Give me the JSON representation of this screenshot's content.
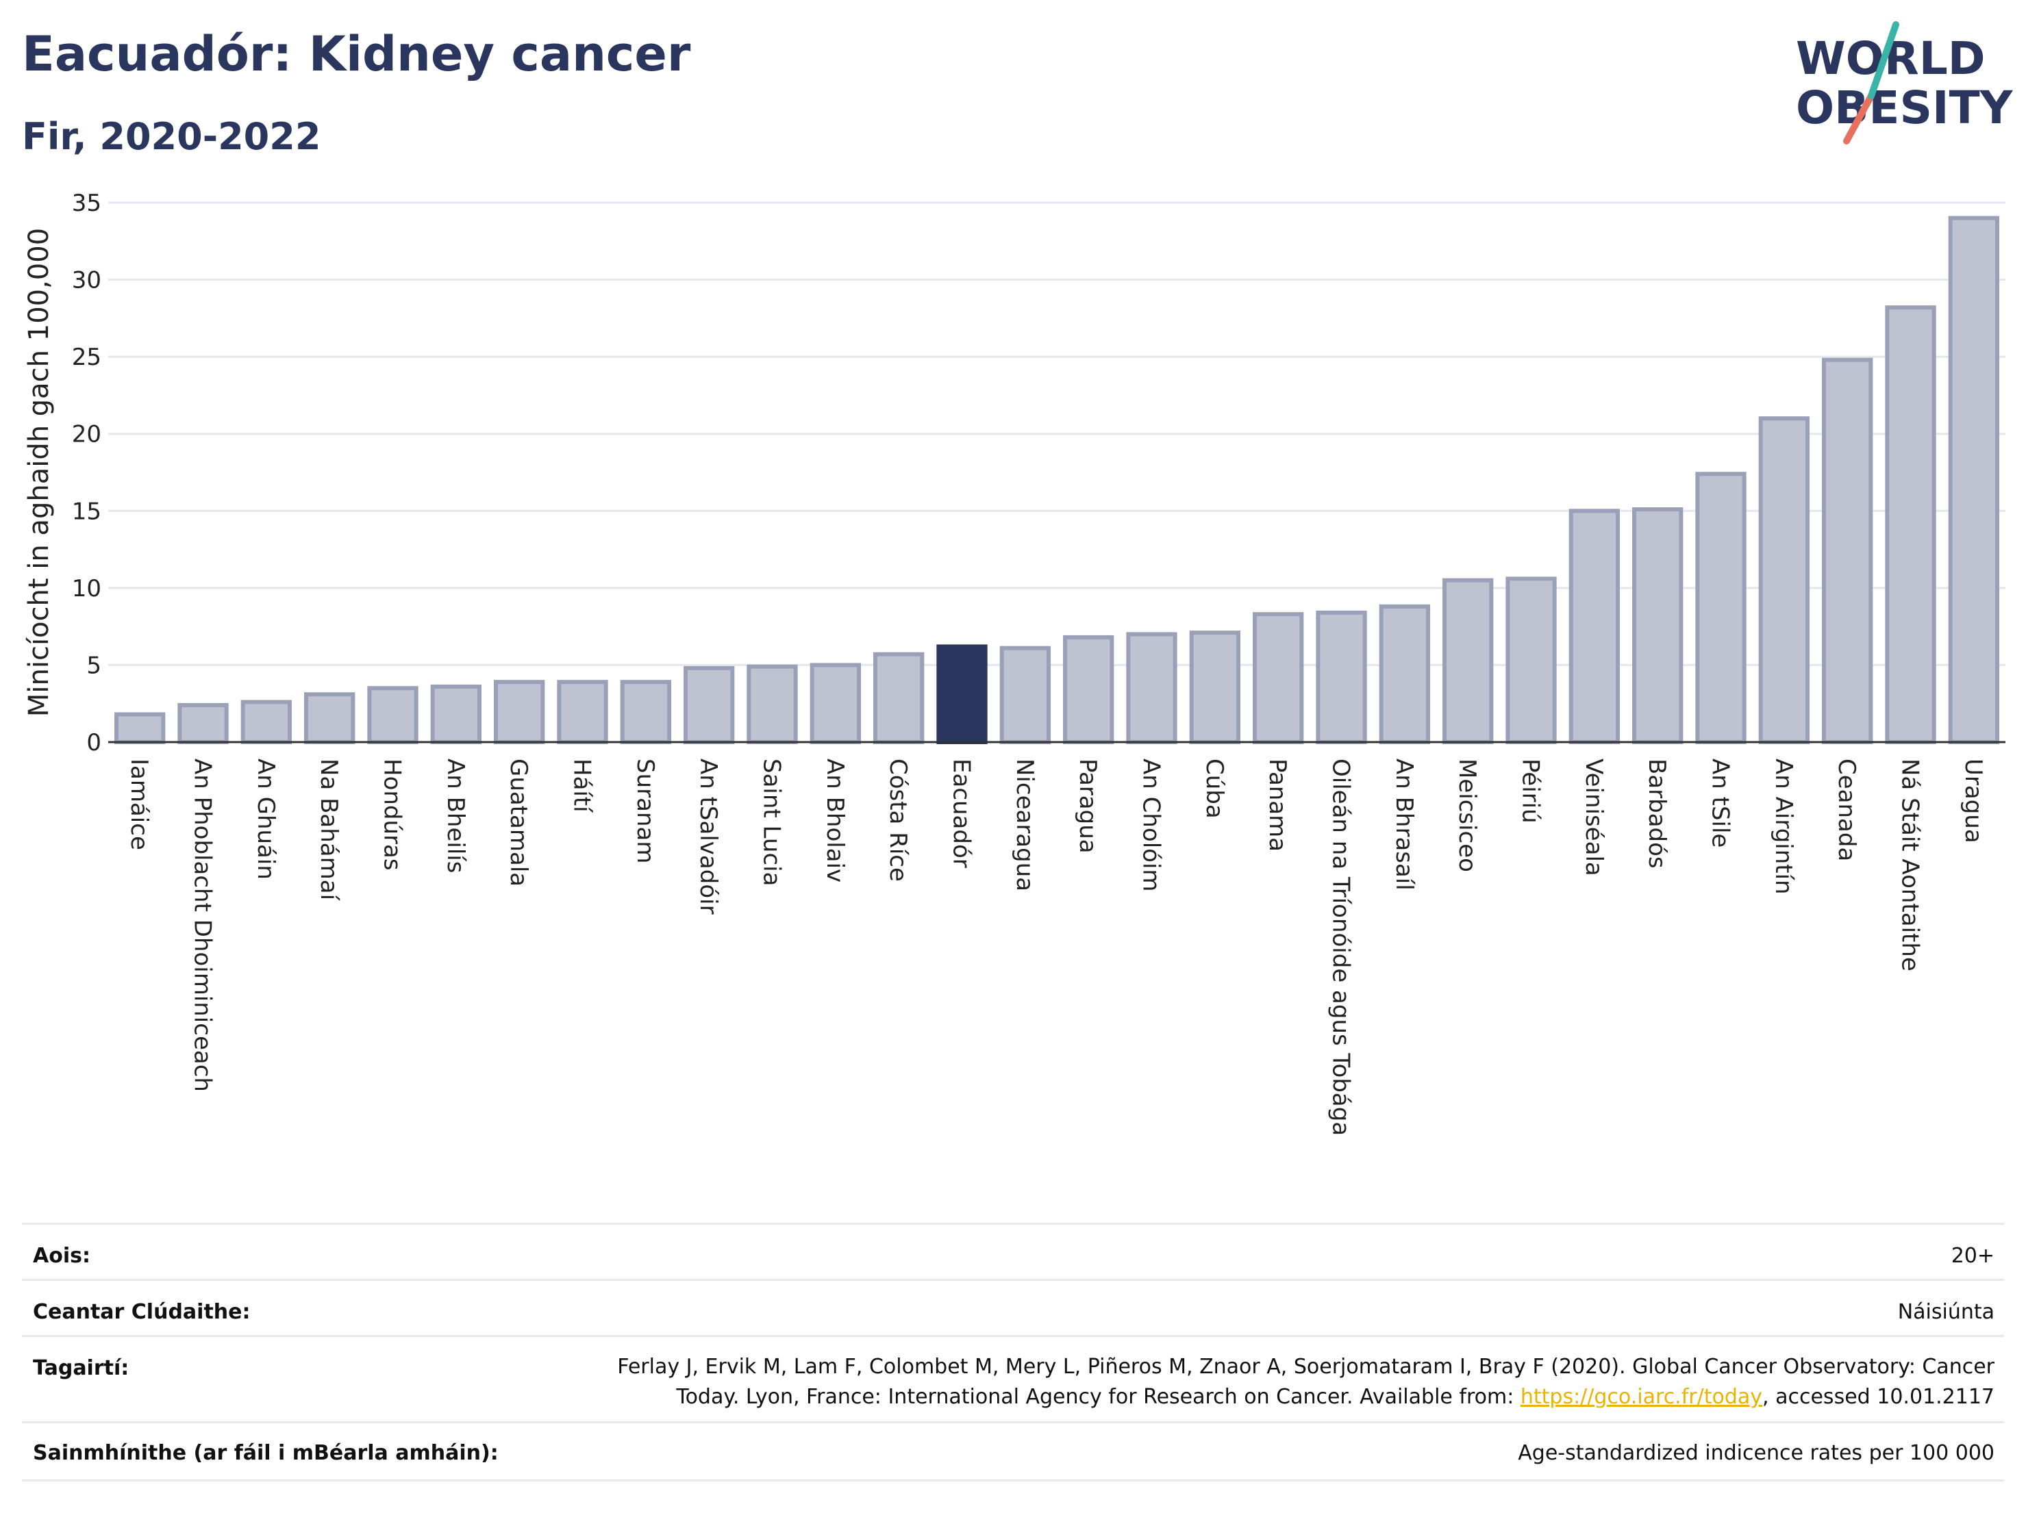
{
  "header": {
    "title": "Eacuadór: Kidney cancer",
    "subtitle": "Fir, 2020-2022",
    "logo_line1": "WORLD",
    "logo_line2": "OBESITY"
  },
  "colors": {
    "bar": "#bfc3d1",
    "bar_edge": "#9aa0b8",
    "highlight": "#2b365f",
    "title": "#2b365f",
    "logo_teal": "#3ab4a8",
    "logo_coral": "#e8705f",
    "link": "#e8b400"
  },
  "chart_data": {
    "type": "bar",
    "ylabel": "Minicíocht in aghaidh gach 100,000",
    "ylim": [
      0,
      35
    ],
    "yticks": [
      0,
      5,
      10,
      15,
      20,
      25,
      30,
      35
    ],
    "grid": true,
    "highlight": "Eacuadór",
    "categories": [
      "Iamáice",
      "An Phoblacht Dhoiminiceach",
      "An Ghuáin",
      "Na Bahámaí",
      "Hondúras",
      "An Bheilís",
      "Guatamala",
      "Háítí",
      "Suranam",
      "An tSalvadóir",
      "Saint Lucia",
      "An Bholaiv",
      "Cósta Ríce",
      "Eacuadór",
      "Nicearagua",
      "Paragua",
      "An Cholóim",
      "Cúba",
      "Panama",
      "Oileán na Tríonóide agus Tobága",
      "An Bhrasaíl",
      "Meicsiceo",
      "Péiriú",
      "Veiniséala",
      "Barbadós",
      "An tSile",
      "An Airgintín",
      "Ceanada",
      "Ná Stáit Aontaithe",
      "Uragua"
    ],
    "values": [
      1.8,
      2.4,
      2.6,
      3.1,
      3.5,
      3.6,
      3.9,
      3.9,
      3.9,
      4.8,
      4.9,
      5.0,
      5.7,
      6.2,
      6.1,
      6.8,
      7.0,
      7.1,
      8.3,
      8.4,
      8.8,
      10.5,
      10.6,
      15.0,
      15.1,
      17.4,
      21.0,
      24.8,
      28.2,
      34.0
    ]
  },
  "meta": {
    "age_label": "Aois:",
    "age_value": "20+",
    "area_label": "Ceantar Clúdaithe:",
    "area_value": "Náisiúnta",
    "ref_label": "Tagairtí:",
    "ref_text_1": "Ferlay J, Ervik M, Lam F, Colombet M, Mery L, Piñeros M, Znaor A, Soerjomataram I, Bray F (2020). Global Cancer Observatory: Cancer Today. Lyon, France: International Agency for Research on Cancer. Available from: ",
    "ref_link": "https://gco.iarc.fr/today",
    "ref_text_2": ", accessed 10.01.2117",
    "def_label": "Sainmhínithe (ar fáil i mBéarla amháin):",
    "def_value": "Age-standardized indicence rates per 100 000"
  }
}
